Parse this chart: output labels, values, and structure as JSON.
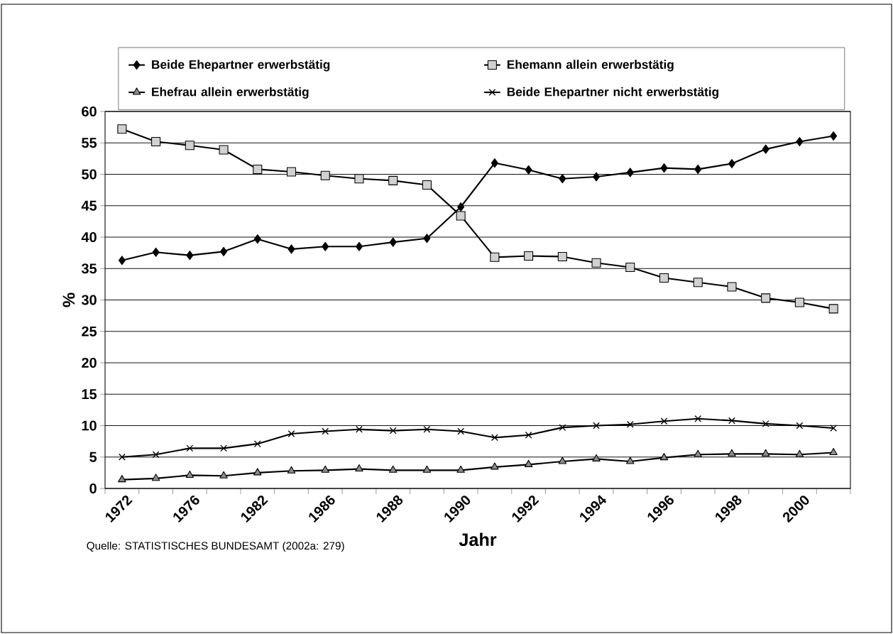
{
  "chart_data": {
    "type": "line",
    "xlabel": "Jahr",
    "ylabel": "%",
    "categories": [
      "1972",
      null,
      "1976",
      null,
      "1982",
      null,
      "1986",
      null,
      "1988",
      null,
      "1990",
      null,
      "1992",
      null,
      "1994",
      null,
      "1996",
      null,
      "1998",
      null,
      "2000",
      null
    ],
    "series": [
      {
        "name": "Beide Ehepartner erwerbstätig",
        "color": "#000000",
        "marker": "diamond",
        "values": [
          36.3,
          37.6,
          37.1,
          37.7,
          39.7,
          38.1,
          38.5,
          38.5,
          39.2,
          39.8,
          44.8,
          51.8,
          50.7,
          49.3,
          49.6,
          50.3,
          51.0,
          50.8,
          51.7,
          54.0,
          55.2,
          56.1
        ]
      },
      {
        "name": "Ehemann allein erwerbstätig",
        "color": "#000000",
        "marker": "square",
        "values": [
          57.2,
          55.2,
          54.6,
          53.9,
          50.8,
          50.4,
          49.8,
          49.3,
          49.0,
          48.3,
          43.4,
          36.8,
          37.0,
          36.9,
          35.9,
          35.2,
          33.5,
          32.8,
          32.1,
          30.3,
          29.6,
          28.6
        ]
      },
      {
        "name": "Ehefrau allein erwerbstätig",
        "color": "#000000",
        "marker": "triangle",
        "values": [
          1.4,
          1.6,
          2.1,
          2.0,
          2.5,
          2.8,
          2.9,
          3.1,
          2.9,
          2.9,
          2.9,
          3.4,
          3.8,
          4.3,
          4.7,
          4.3,
          4.9,
          5.4,
          5.5,
          5.5,
          5.4,
          5.7
        ]
      },
      {
        "name": "Beide Ehepartner nicht erwerbstätig",
        "color": "#000000",
        "marker": "cross",
        "values": [
          5.0,
          5.4,
          6.4,
          6.4,
          7.1,
          8.7,
          9.1,
          9.4,
          9.2,
          9.4,
          9.1,
          8.1,
          8.5,
          9.7,
          10.0,
          10.2,
          10.7,
          11.1,
          10.8,
          10.3,
          10.0,
          9.6
        ]
      }
    ],
    "ylim": [
      0,
      60
    ],
    "yticks": [
      0,
      5,
      10,
      15,
      20,
      25,
      30,
      35,
      40,
      45,
      50,
      55,
      60
    ],
    "grid": "y",
    "legend": "top",
    "line_style": "solid",
    "annotations": [
      "Quelle: STATISTISCHES BUNDESAMT (2002a: 279)"
    ]
  }
}
